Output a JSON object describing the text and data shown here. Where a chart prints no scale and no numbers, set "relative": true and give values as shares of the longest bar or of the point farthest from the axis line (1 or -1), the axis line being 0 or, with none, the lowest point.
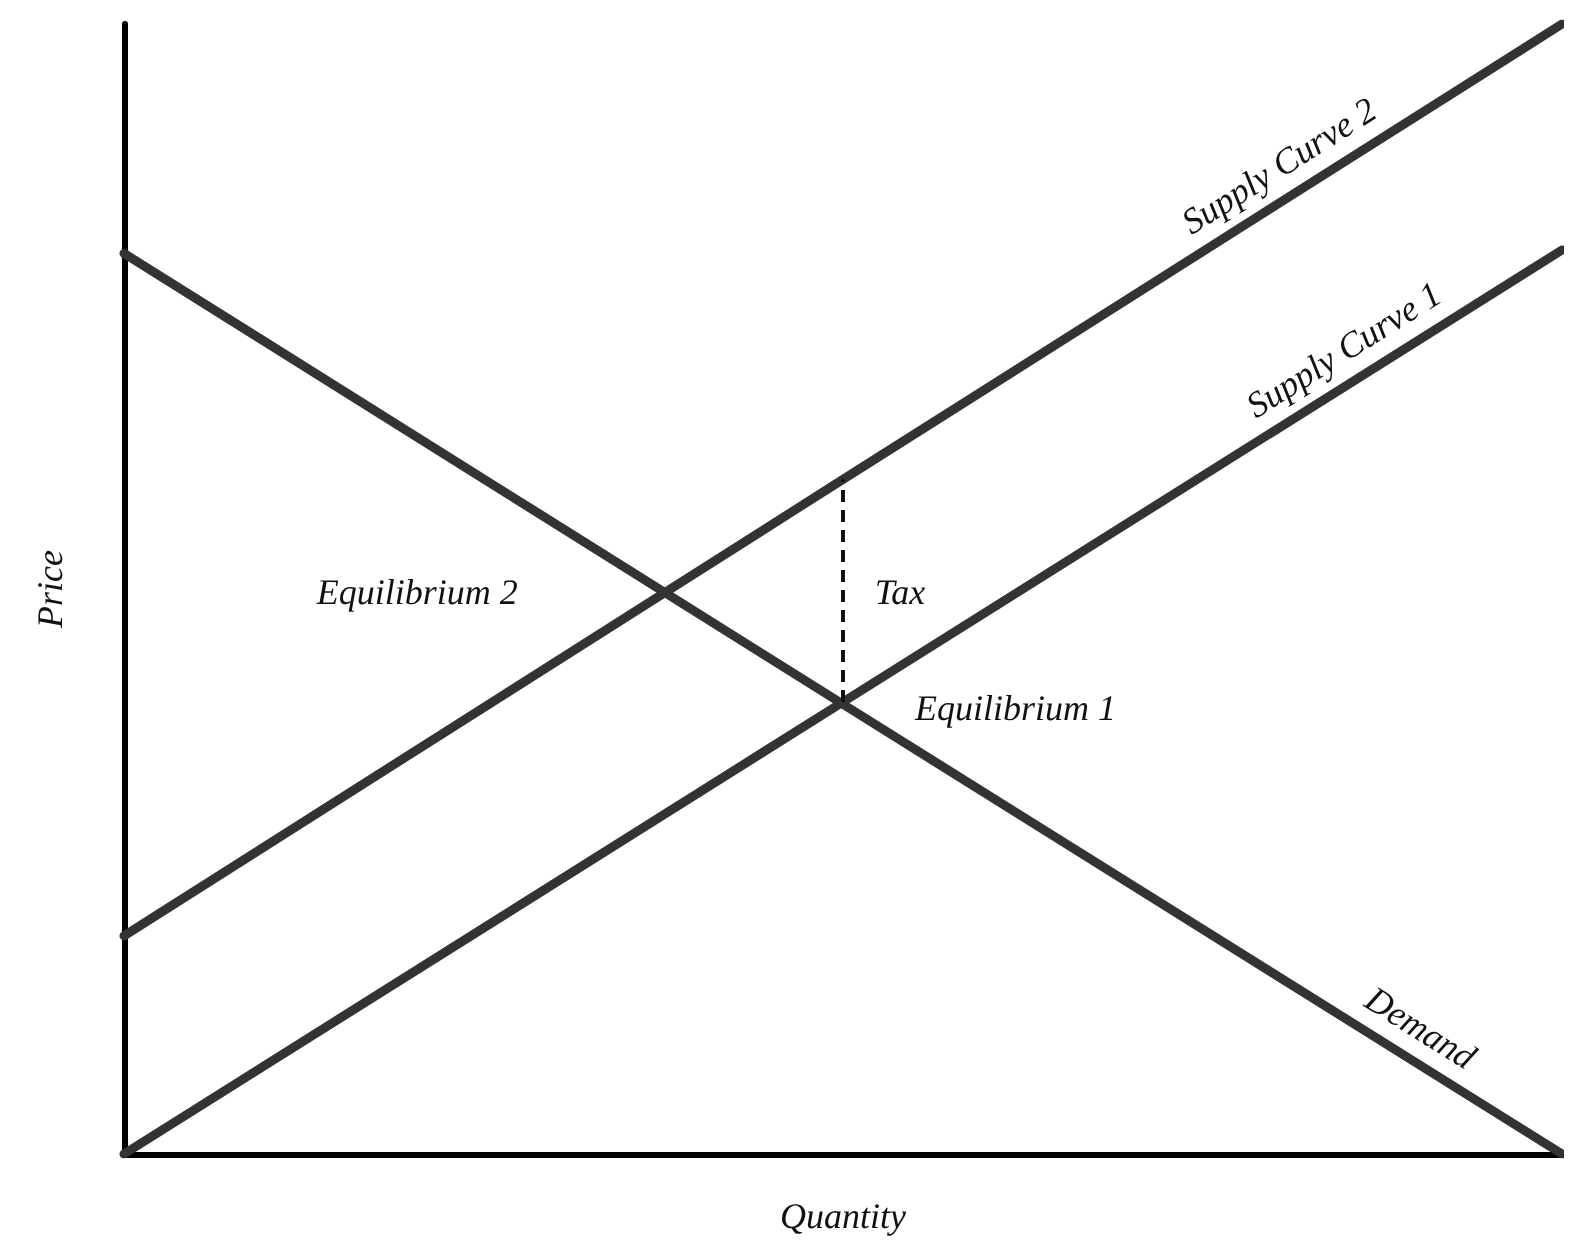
{
  "chart_data": {
    "type": "line",
    "relative": true,
    "xlabel": "Quantity",
    "ylabel": "Price",
    "categories": [
      null,
      null,
      null
    ],
    "tick_labels": false,
    "grid": false,
    "legend": false,
    "marker": "none",
    "series": [
      {
        "name": "Supply Curve 2",
        "color": "#333333",
        "values": [
          0.193,
          0.597,
          1.0
        ]
      },
      {
        "name": "Supply Curve 1",
        "color": "#333333",
        "values": [
          0,
          0.4,
          0.8
        ]
      },
      {
        "name": "Demand",
        "color": "#333333",
        "values": [
          0.797,
          0.398,
          0
        ]
      }
    ],
    "annotations": [
      "Equilibrium 2",
      "Tax",
      "Equilibrium 1"
    ]
  }
}
